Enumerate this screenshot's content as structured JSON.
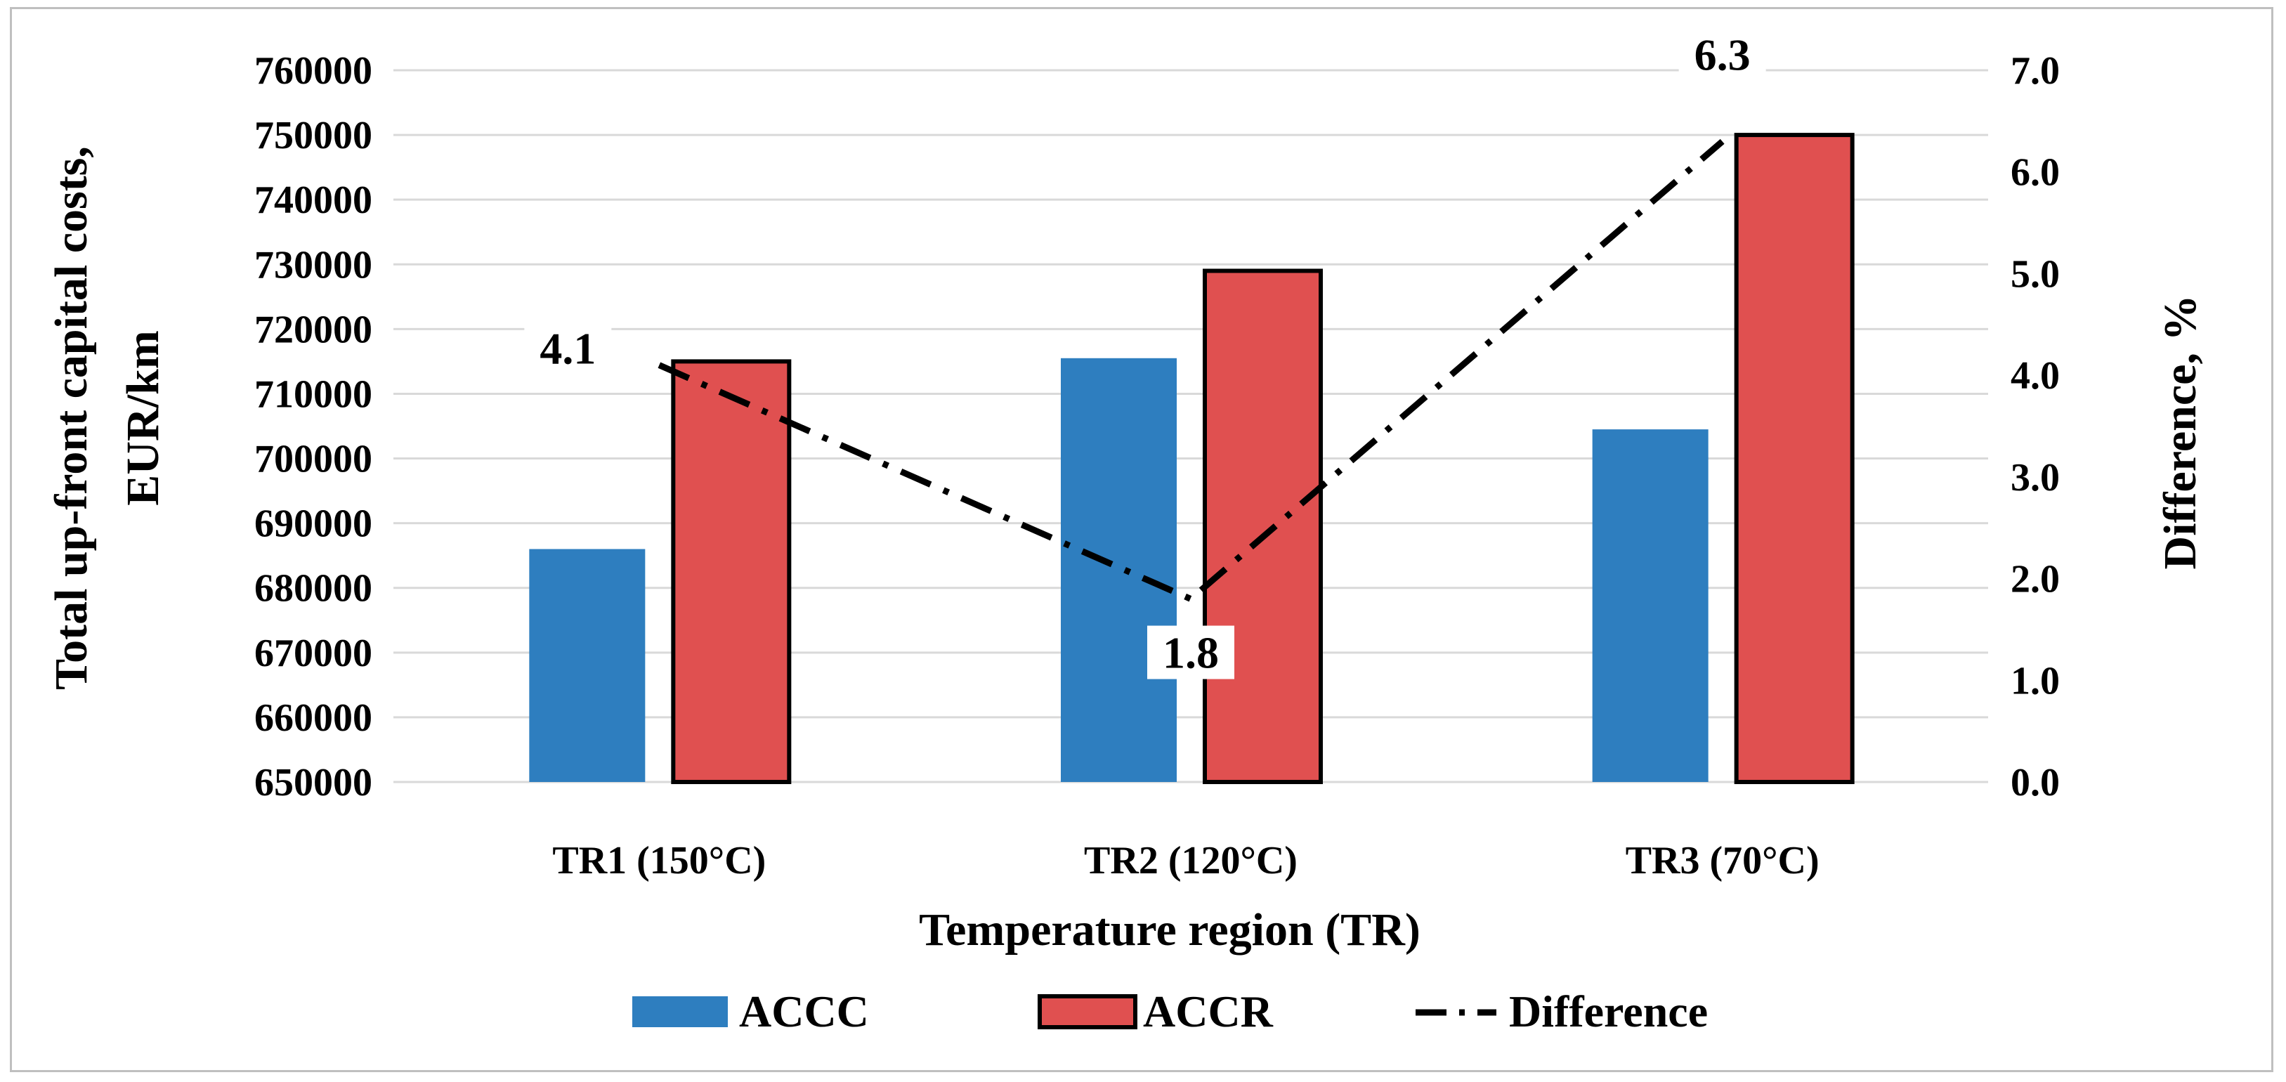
{
  "chart_data": {
    "type": "bar",
    "categories": [
      "TR1 (150°C)",
      "TR2 (120°C)",
      "TR3 (70°C)"
    ],
    "series": [
      {
        "name": "ACCC",
        "axis": "left",
        "kind": "bar",
        "color": "#2e7ebf",
        "values": [
          686000,
          715500,
          704500
        ]
      },
      {
        "name": "ACCR",
        "axis": "left",
        "kind": "bar",
        "color": "#e05050",
        "values": [
          715000,
          729000,
          750000
        ]
      },
      {
        "name": "Difference",
        "axis": "right",
        "kind": "line",
        "color": "#000000",
        "values": [
          4.1,
          1.8,
          6.3
        ]
      }
    ],
    "data_labels": [
      "4.1",
      "1.8",
      "6.3"
    ],
    "xlabel": "Temperature region (TR)",
    "ylabel_line1": "Total up-front capital costs,",
    "ylabel_line2": "EUR/km",
    "y2label": "Difference, %",
    "ylim": [
      650000,
      760000
    ],
    "y2lim": [
      0,
      7
    ],
    "yticks": [
      "650000",
      "660000",
      "670000",
      "680000",
      "690000",
      "700000",
      "710000",
      "720000",
      "730000",
      "740000",
      "750000",
      "760000"
    ],
    "y2ticks": [
      "0.0",
      "1.0",
      "2.0",
      "3.0",
      "4.0",
      "5.0",
      "6.0",
      "7.0"
    ],
    "legend": [
      "ACCC",
      "ACCR",
      "Difference"
    ],
    "legend_position": "bottom",
    "grid": true
  }
}
